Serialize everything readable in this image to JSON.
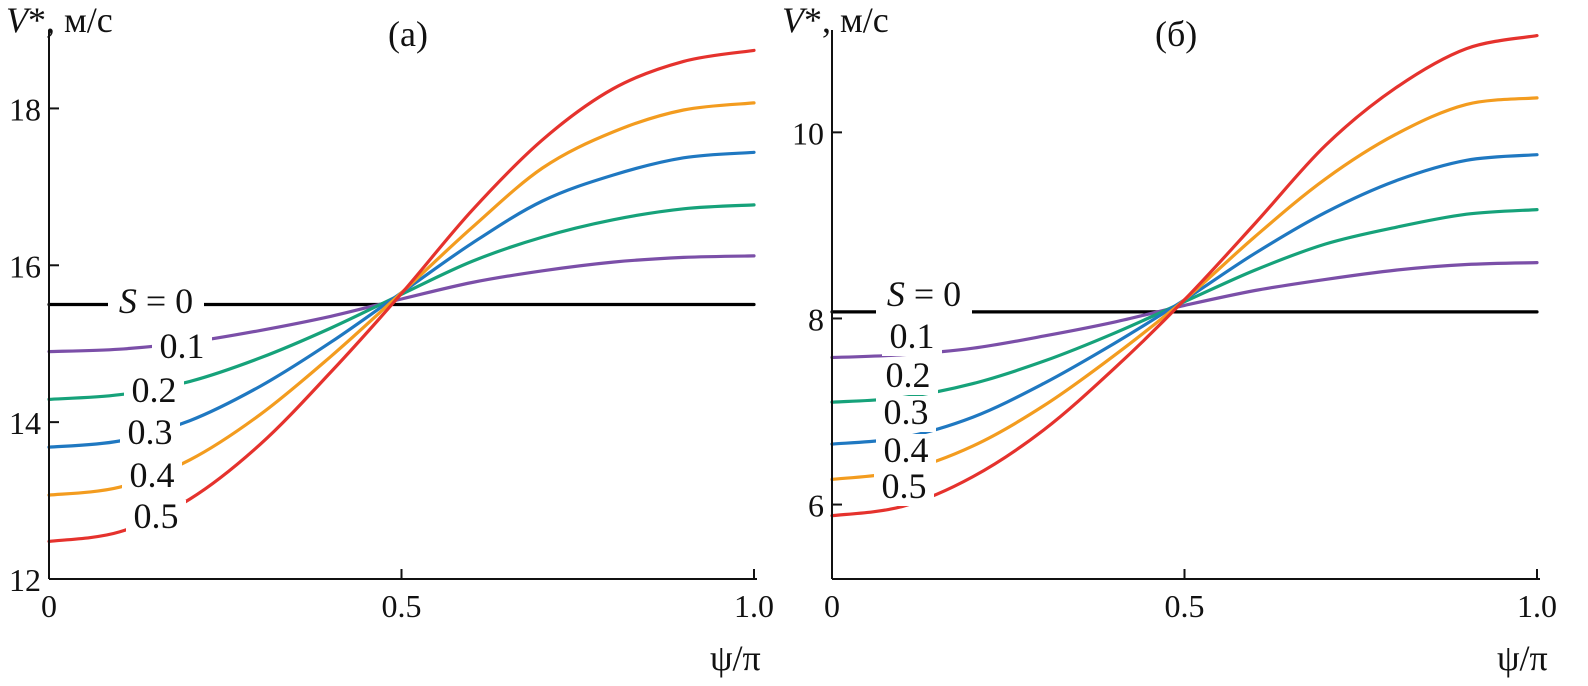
{
  "chart_data": [
    {
      "type": "line",
      "panel_label": "(a)",
      "ylabel_var": "V",
      "ylabel_rest": "*, м/с",
      "xlabel": "ψ/π",
      "xlim": [
        0,
        1.0
      ],
      "ylim": [
        12,
        19
      ],
      "xticks": [
        "0",
        "0.5",
        "1.0"
      ],
      "yticks": [
        "12",
        "14",
        "16",
        "18"
      ],
      "series": [
        {
          "name": "S = 0",
          "color": "#000000",
          "x": [
            0,
            0.1,
            0.2,
            0.3,
            0.4,
            0.5,
            0.6,
            0.7,
            0.8,
            0.9,
            1.0
          ],
          "y": [
            15.5,
            15.5,
            15.5,
            15.5,
            15.5,
            15.5,
            15.5,
            15.5,
            15.5,
            15.5,
            15.5
          ]
        },
        {
          "name": "0.1",
          "color": "#7b4fa8",
          "x": [
            0,
            0.1,
            0.2,
            0.3,
            0.4,
            0.5,
            0.6,
            0.7,
            0.8,
            0.9,
            1.0
          ],
          "y": [
            14.9,
            14.93,
            15.02,
            15.17,
            15.35,
            15.57,
            15.78,
            15.93,
            16.04,
            16.1,
            16.12
          ]
        },
        {
          "name": "0.2",
          "color": "#16a27a",
          "x": [
            0,
            0.1,
            0.2,
            0.3,
            0.4,
            0.5,
            0.6,
            0.7,
            0.8,
            0.9,
            1.0
          ],
          "y": [
            14.29,
            14.35,
            14.52,
            14.82,
            15.2,
            15.63,
            16.05,
            16.36,
            16.58,
            16.72,
            16.77
          ]
        },
        {
          "name": "0.3",
          "color": "#1f78c1",
          "x": [
            0,
            0.1,
            0.2,
            0.3,
            0.4,
            0.5,
            0.6,
            0.7,
            0.8,
            0.9,
            1.0
          ],
          "y": [
            13.68,
            13.76,
            14.02,
            14.46,
            15.02,
            15.65,
            16.28,
            16.82,
            17.15,
            17.37,
            17.44
          ]
        },
        {
          "name": "0.4",
          "color": "#f39c1f",
          "x": [
            0,
            0.1,
            0.2,
            0.3,
            0.4,
            0.5,
            0.6,
            0.7,
            0.8,
            0.9,
            1.0
          ],
          "y": [
            13.07,
            13.17,
            13.52,
            14.1,
            14.84,
            15.65,
            16.48,
            17.24,
            17.7,
            17.98,
            18.07
          ]
        },
        {
          "name": "0.5",
          "color": "#e5322d",
          "x": [
            0,
            0.1,
            0.2,
            0.3,
            0.4,
            0.5,
            0.6,
            0.7,
            0.8,
            0.9,
            1.0
          ],
          "y": [
            12.48,
            12.6,
            13.02,
            13.72,
            14.64,
            15.64,
            16.7,
            17.6,
            18.25,
            18.6,
            18.74
          ]
        }
      ]
    },
    {
      "type": "line",
      "panel_label": "(б)",
      "ylabel_var": "V",
      "ylabel_rest": "*, м/с",
      "xlabel": "ψ/π",
      "xlim": [
        0,
        1.0
      ],
      "ylim": [
        5.2,
        11.1
      ],
      "xticks": [
        "0",
        "0.5",
        "1.0"
      ],
      "yticks": [
        "6",
        "8",
        "10"
      ],
      "series": [
        {
          "name": "S = 0",
          "color": "#000000",
          "x": [
            0,
            0.1,
            0.2,
            0.3,
            0.4,
            0.5,
            0.6,
            0.7,
            0.8,
            0.9,
            1.0
          ],
          "y": [
            8.07,
            8.07,
            8.07,
            8.07,
            8.07,
            8.07,
            8.07,
            8.07,
            8.07,
            8.07,
            8.07
          ]
        },
        {
          "name": "0.1",
          "color": "#7b4fa8",
          "x": [
            0,
            0.1,
            0.2,
            0.3,
            0.4,
            0.5,
            0.6,
            0.7,
            0.8,
            0.9,
            1.0
          ],
          "y": [
            7.58,
            7.61,
            7.68,
            7.81,
            7.96,
            8.14,
            8.3,
            8.42,
            8.52,
            8.58,
            8.6
          ]
        },
        {
          "name": "0.2",
          "color": "#16a27a",
          "x": [
            0,
            0.1,
            0.2,
            0.3,
            0.4,
            0.5,
            0.6,
            0.7,
            0.8,
            0.9,
            1.0
          ],
          "y": [
            7.1,
            7.15,
            7.3,
            7.54,
            7.84,
            8.18,
            8.52,
            8.8,
            8.98,
            9.12,
            9.17
          ]
        },
        {
          "name": "0.3",
          "color": "#1f78c1",
          "x": [
            0,
            0.1,
            0.2,
            0.3,
            0.4,
            0.5,
            0.6,
            0.7,
            0.8,
            0.9,
            1.0
          ],
          "y": [
            6.65,
            6.72,
            6.94,
            7.3,
            7.73,
            8.2,
            8.7,
            9.14,
            9.48,
            9.7,
            9.76
          ]
        },
        {
          "name": "0.4",
          "color": "#f39c1f",
          "x": [
            0,
            0.1,
            0.2,
            0.3,
            0.4,
            0.5,
            0.6,
            0.7,
            0.8,
            0.9,
            1.0
          ],
          "y": [
            6.27,
            6.36,
            6.63,
            7.06,
            7.6,
            8.2,
            8.88,
            9.5,
            9.98,
            10.3,
            10.37
          ]
        },
        {
          "name": "0.5",
          "color": "#e5322d",
          "x": [
            0,
            0.1,
            0.2,
            0.3,
            0.4,
            0.5,
            0.6,
            0.7,
            0.8,
            0.9,
            1.0
          ],
          "y": [
            5.88,
            5.98,
            6.3,
            6.8,
            7.46,
            8.2,
            9.02,
            9.86,
            10.48,
            10.9,
            11.04
          ]
        }
      ]
    }
  ]
}
